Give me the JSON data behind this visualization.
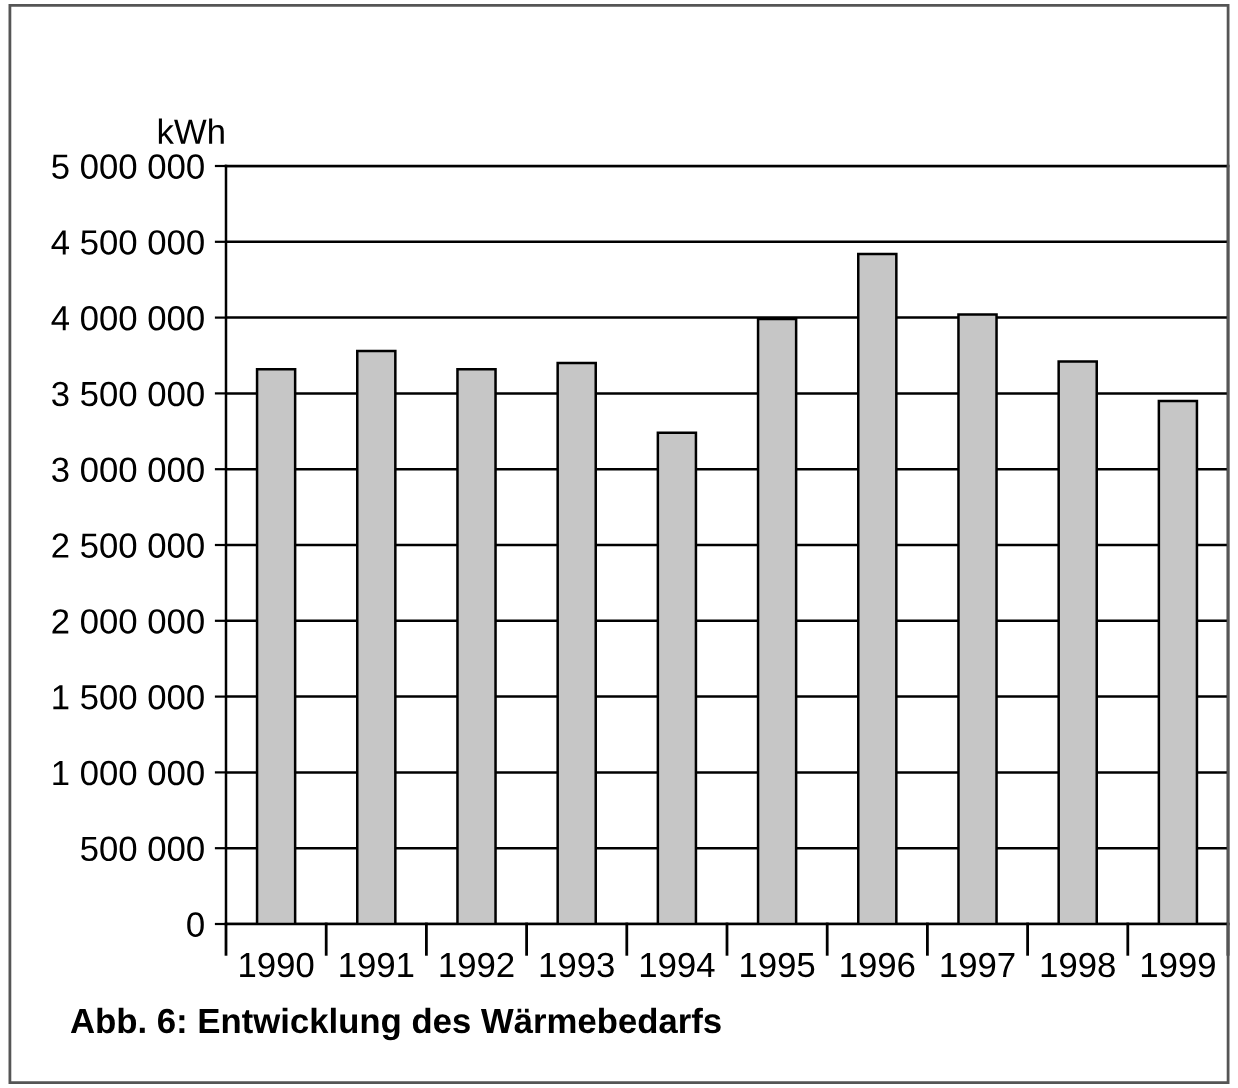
{
  "chart_data": {
    "type": "bar",
    "ylabel": "kWh",
    "annotations": [
      "Abb. 6: Entwicklung des Wärmebedarfs"
    ],
    "categories": [
      "1990",
      "1991",
      "1992",
      "1993",
      "1994",
      "1995",
      "1996",
      "1997",
      "1998",
      "1999"
    ],
    "values": [
      3660000,
      3780000,
      3660000,
      3700000,
      3240000,
      3990000,
      4420000,
      4020000,
      3710000,
      3450000
    ],
    "color": "#c6c6c6",
    "ylim": [
      0,
      5000000
    ],
    "yticks": [
      0,
      {
        "value": 500000,
        "label": "500 000"
      },
      {
        "value": 1000000,
        "label": "1 000 000"
      },
      {
        "value": 1500000,
        "label": "1 500 000"
      },
      {
        "value": 2000000,
        "label": "2 000 000"
      },
      {
        "value": 2500000,
        "label": "2 500 000"
      },
      {
        "value": 3000000,
        "label": "3 000 000"
      },
      {
        "value": 3500000,
        "label": "3 500 000"
      },
      {
        "value": 4000000,
        "label": "4 000 000"
      },
      {
        "value": 4500000,
        "label": "4 500 000"
      },
      {
        "value": 5000000,
        "label": "5 000 000"
      }
    ],
    "grid": "y"
  }
}
